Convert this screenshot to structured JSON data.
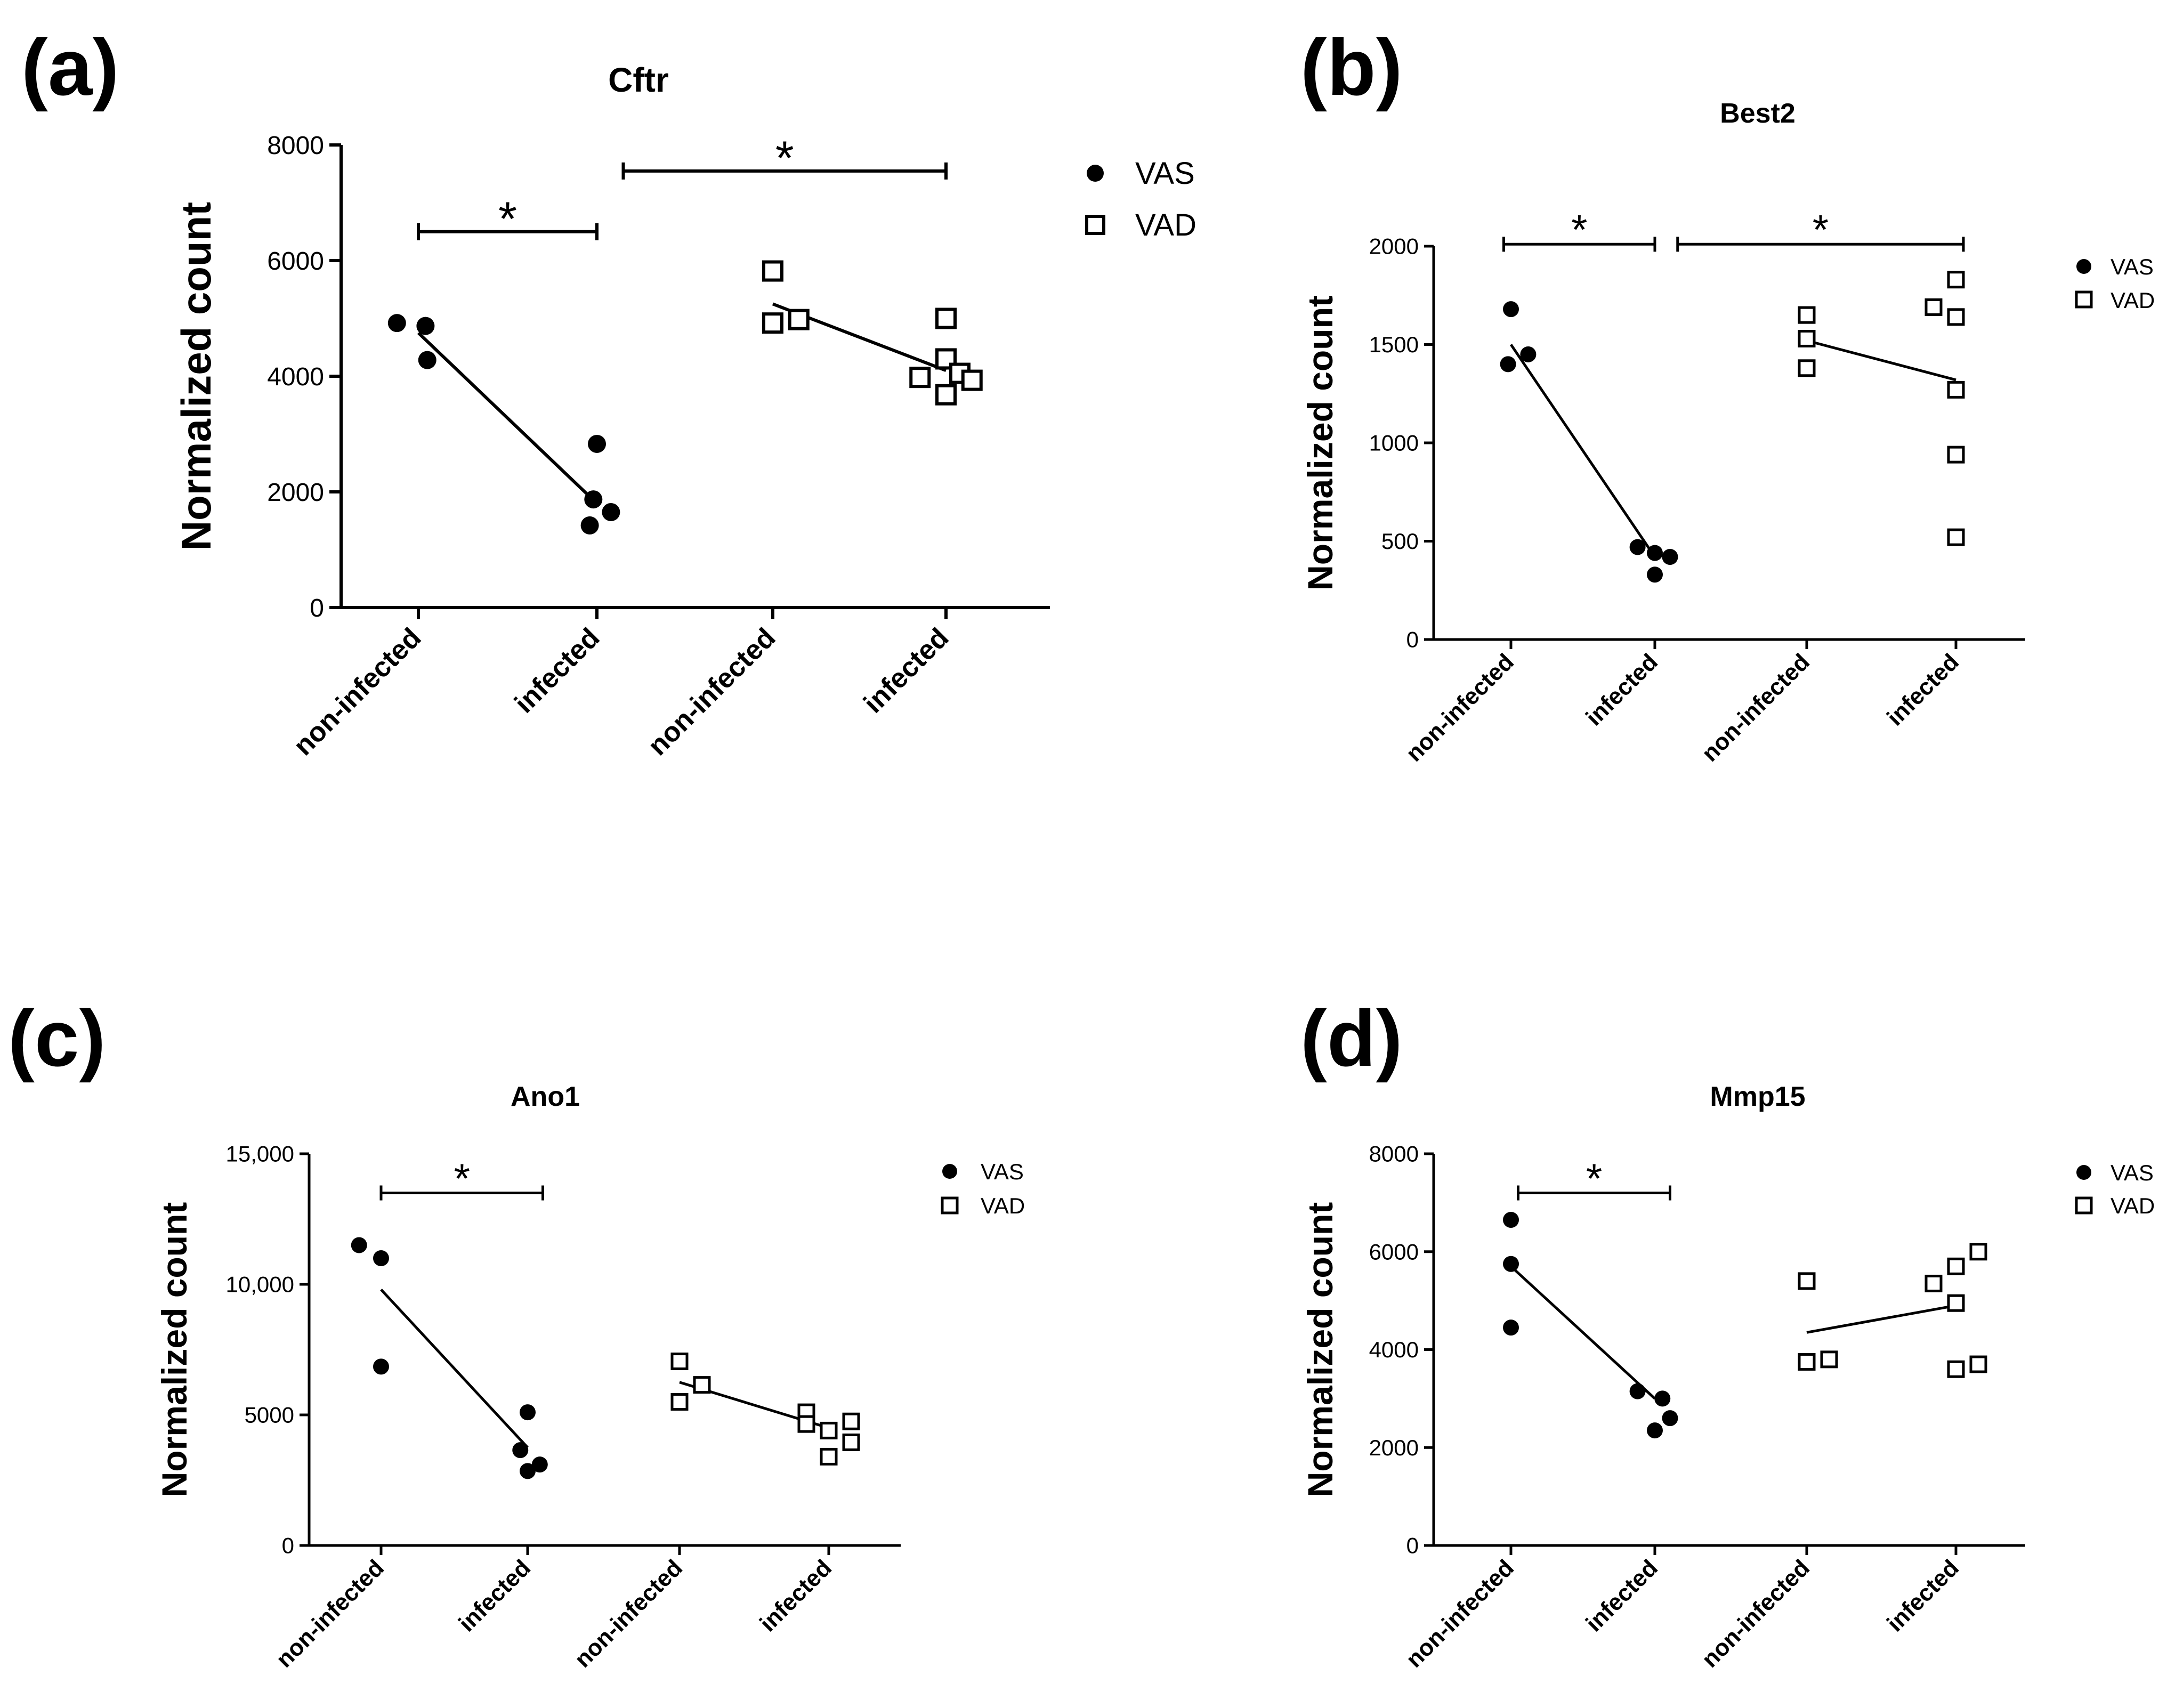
{
  "figure": {
    "panels": [
      {
        "letter": "(a)"
      },
      {
        "letter": "(b)"
      },
      {
        "letter": "(c)"
      },
      {
        "letter": "(d)"
      }
    ]
  },
  "chart_data": [
    {
      "type": "scatter",
      "title": "Cftr",
      "ylabel": "Normalized count",
      "xlabel": "",
      "categories": [
        "non-infected",
        "infected",
        "non-infected",
        "infected"
      ],
      "ylim": [
        0,
        8000
      ],
      "yticks": [
        0,
        2000,
        4000,
        6000,
        8000
      ],
      "ytick_labels": [
        "0",
        "2000",
        "4000",
        "6000",
        "8000"
      ],
      "legend": [
        {
          "name": "VAS",
          "marker": "filled-circle"
        },
        {
          "name": "VAD",
          "marker": "open-square"
        }
      ],
      "series": [
        {
          "name": "VAS",
          "groups": [
            {
              "category_index": 0,
              "points": [
                [
                  -0.12,
                  4920
                ],
                [
                  0.04,
                  4870
                ],
                [
                  0.05,
                  4280
                ]
              ]
            },
            {
              "category_index": 1,
              "points": [
                [
                  0.0,
                  2830
                ],
                [
                  -0.02,
                  1870
                ],
                [
                  -0.04,
                  1420
                ],
                [
                  0.08,
                  1650
                ]
              ]
            }
          ],
          "trend": [
            [
              0.0,
              4750
            ],
            [
              1.0,
              1800
            ]
          ]
        },
        {
          "name": "VAD",
          "groups": [
            {
              "category_index": 2,
              "points": [
                [
                  0.0,
                  5820
                ],
                [
                  0.0,
                  4920
                ],
                [
                  0.15,
                  4980
                ]
              ]
            },
            {
              "category_index": 3,
              "points": [
                [
                  0.0,
                  5000
                ],
                [
                  0.0,
                  4300
                ],
                [
                  0.08,
                  4050
                ],
                [
                  -0.15,
                  3980
                ],
                [
                  0.15,
                  3930
                ],
                [
                  0.0,
                  3680
                ]
              ]
            }
          ],
          "trend": [
            [
              0.0,
              5250
            ],
            [
              1.0,
              4100
            ]
          ]
        }
      ],
      "significance": [
        {
          "from": 0,
          "to": 1,
          "level": 6500,
          "label": "*"
        },
        {
          "from": 1.15,
          "to": 3.0,
          "level": 7550,
          "label": "*"
        }
      ]
    },
    {
      "type": "scatter",
      "title": "Best2",
      "ylabel": "Normalized count",
      "xlabel": "",
      "categories": [
        "non-infected",
        "infected",
        "non-infected",
        "infected"
      ],
      "ylim": [
        0,
        2000
      ],
      "yticks": [
        0,
        500,
        1000,
        1500,
        2000
      ],
      "ytick_labels": [
        "0",
        "500",
        "1000",
        "1500",
        "2000"
      ],
      "legend": [
        {
          "name": "VAS",
          "marker": "filled-circle"
        },
        {
          "name": "VAD",
          "marker": "open-square"
        }
      ],
      "series": [
        {
          "name": "VAS",
          "groups": [
            {
              "category_index": 0,
              "points": [
                [
                  0.0,
                  1680
                ],
                [
                  0.12,
                  1450
                ],
                [
                  -0.02,
                  1400
                ]
              ]
            },
            {
              "category_index": 1,
              "points": [
                [
                  -0.12,
                  470
                ],
                [
                  0.0,
                  440
                ],
                [
                  0.1,
                  420
                ],
                [
                  0.0,
                  330
                ]
              ]
            }
          ],
          "trend": [
            [
              0.0,
              1500
            ],
            [
              1.0,
              420
            ]
          ]
        },
        {
          "name": "VAD",
          "groups": [
            {
              "category_index": 2,
              "points": [
                [
                  0.0,
                  1650
                ],
                [
                  0.0,
                  1530
                ],
                [
                  0.0,
                  1380
                ]
              ]
            },
            {
              "category_index": 3,
              "points": [
                [
                  0.0,
                  1830
                ],
                [
                  -0.15,
                  1690
                ],
                [
                  0.0,
                  1640
                ],
                [
                  0.0,
                  1270
                ],
                [
                  0.0,
                  940
                ],
                [
                  0.0,
                  520
                ]
              ]
            }
          ],
          "trend": [
            [
              0.0,
              1520
            ],
            [
              1.0,
              1320
            ]
          ]
        }
      ],
      "significance": [
        {
          "from": -0.05,
          "to": 1.0,
          "level": 2010,
          "label": "*"
        },
        {
          "from": 1.15,
          "to": 3.05,
          "level": 2010,
          "label": "*"
        }
      ]
    },
    {
      "type": "scatter",
      "title": "Ano1",
      "ylabel": "Normalized count",
      "xlabel": "",
      "categories": [
        "non-infected",
        "infected",
        "non-infected",
        "infected"
      ],
      "ylim": [
        0,
        15000
      ],
      "yticks": [
        0,
        5000,
        10000,
        15000
      ],
      "ytick_labels": [
        "0",
        "5000",
        "10,000",
        "15,000"
      ],
      "legend": [
        {
          "name": "VAS",
          "marker": "filled-circle"
        },
        {
          "name": "VAD",
          "marker": "open-square"
        }
      ],
      "series": [
        {
          "name": "VAS",
          "groups": [
            {
              "category_index": 0,
              "points": [
                [
                  -0.15,
                  11500
                ],
                [
                  0.0,
                  11000
                ],
                [
                  0.0,
                  6850
                ]
              ]
            },
            {
              "category_index": 1,
              "points": [
                [
                  0.0,
                  5100
                ],
                [
                  -0.05,
                  3650
                ],
                [
                  0.08,
                  3100
                ],
                [
                  0.0,
                  2850
                ]
              ]
            }
          ],
          "trend": [
            [
              0.0,
              9800
            ],
            [
              1.0,
              3750
            ]
          ]
        },
        {
          "name": "VAD",
          "groups": [
            {
              "category_index": 2,
              "points": [
                [
                  0.0,
                  7050
                ],
                [
                  0.15,
                  6150
                ],
                [
                  0.0,
                  5500
                ]
              ]
            },
            {
              "category_index": 3,
              "points": [
                [
                  -0.15,
                  5100
                ],
                [
                  -0.15,
                  4650
                ],
                [
                  0.15,
                  4750
                ],
                [
                  0.0,
                  4400
                ],
                [
                  0.15,
                  3950
                ],
                [
                  0.0,
                  3400
                ]
              ]
            }
          ],
          "trend": [
            [
              0.0,
              6250
            ],
            [
              1.0,
              4500
            ]
          ]
        }
      ],
      "significance": [
        {
          "from": 0.0,
          "to": 1.1,
          "level": 13500,
          "label": "*"
        }
      ]
    },
    {
      "type": "scatter",
      "title": "Mmp15",
      "ylabel": "Normalized count",
      "xlabel": "",
      "categories": [
        "non-infected",
        "infected",
        "non-infected",
        "infected"
      ],
      "ylim": [
        0,
        8000
      ],
      "yticks": [
        0,
        2000,
        4000,
        6000,
        8000
      ],
      "ytick_labels": [
        "0",
        "2000",
        "4000",
        "6000",
        "8000"
      ],
      "legend": [
        {
          "name": "VAS",
          "marker": "filled-circle"
        },
        {
          "name": "VAD",
          "marker": "open-square"
        }
      ],
      "series": [
        {
          "name": "VAS",
          "groups": [
            {
              "category_index": 0,
              "points": [
                [
                  0.0,
                  6650
                ],
                [
                  0.0,
                  5750
                ],
                [
                  0.0,
                  4450
                ]
              ]
            },
            {
              "category_index": 1,
              "points": [
                [
                  -0.12,
                  3150
                ],
                [
                  0.05,
                  3000
                ],
                [
                  0.1,
                  2600
                ],
                [
                  0.0,
                  2350
                ]
              ]
            }
          ],
          "trend": [
            [
              0.0,
              5700
            ],
            [
              1.0,
              3000
            ]
          ]
        },
        {
          "name": "VAD",
          "groups": [
            {
              "category_index": 2,
              "points": [
                [
                  0.0,
                  5400
                ],
                [
                  0.0,
                  3750
                ],
                [
                  0.15,
                  3800
                ]
              ]
            },
            {
              "category_index": 3,
              "points": [
                [
                  0.15,
                  6000
                ],
                [
                  0.0,
                  5700
                ],
                [
                  -0.15,
                  5350
                ],
                [
                  0.0,
                  4950
                ],
                [
                  0.0,
                  3600
                ],
                [
                  0.15,
                  3700
                ]
              ]
            }
          ],
          "trend": [
            [
              0.0,
              4350
            ],
            [
              1.0,
              4900
            ]
          ]
        }
      ],
      "significance": [
        {
          "from": 0.05,
          "to": 1.1,
          "level": 7200,
          "label": "*"
        }
      ]
    }
  ]
}
